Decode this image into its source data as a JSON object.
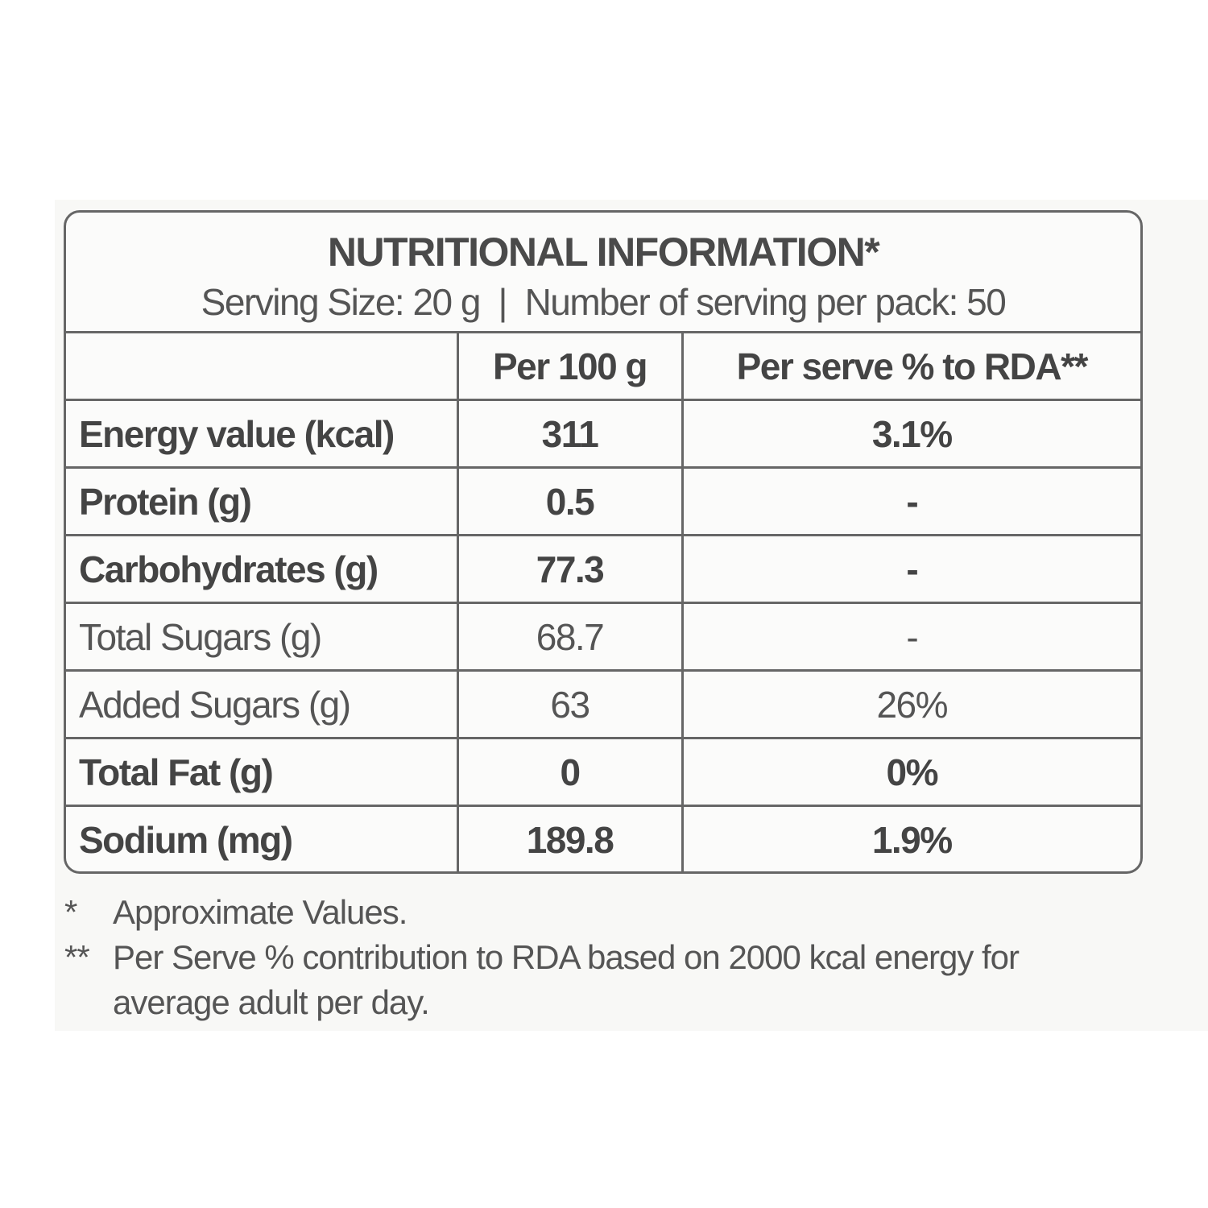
{
  "panel": {
    "title": "NUTRITIONAL INFORMATION*",
    "subtitle": "Serving Size: 20 g  |  Number of serving per pack: 50",
    "table": {
      "header": [
        "Per 100 g",
        "Per serve % to RDA**"
      ],
      "rows": [
        [
          "Energy value (kcal)",
          "311",
          "3.1%"
        ],
        [
          "Protein (g)",
          "0.5",
          "-"
        ],
        [
          "Carbohydrates (g)",
          "77.3",
          "-"
        ],
        [
          "Total Sugars (g)",
          "68.7",
          "-"
        ],
        [
          "Added Sugars (g)",
          "63",
          "26%"
        ],
        [
          "Total Fat (g)",
          "0",
          "0%"
        ],
        [
          "Sodium (mg)",
          "189.8",
          "1.9%"
        ]
      ]
    },
    "footnotes": [
      {
        "mark": "*",
        "text": "Approximate Values."
      },
      {
        "mark": "**",
        "text": "Per Serve % contribution to RDA based on 2000 kcal energy for average adult per day."
      }
    ]
  }
}
